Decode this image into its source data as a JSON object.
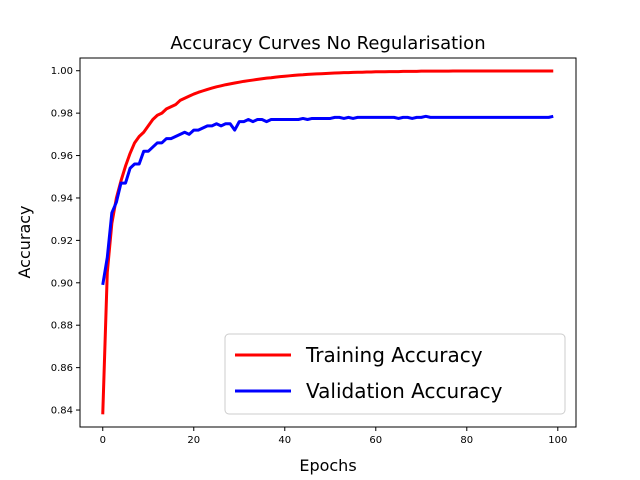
{
  "chart_data": {
    "type": "line",
    "title": "Accuracy Curves No Regularisation",
    "xlabel": "Epochs",
    "ylabel": "Accuracy",
    "xlim": [
      -5,
      104
    ],
    "ylim": [
      0.832,
      1.006
    ],
    "xticks": [
      0,
      20,
      40,
      60,
      80,
      100
    ],
    "yticks": [
      0.84,
      0.86,
      0.88,
      0.9,
      0.92,
      0.94,
      0.96,
      0.98,
      1.0
    ],
    "xtick_labels": [
      "0",
      "20",
      "40",
      "60",
      "80",
      "100"
    ],
    "ytick_labels": [
      "0.84",
      "0.86",
      "0.88",
      "0.90",
      "0.92",
      "0.94",
      "0.96",
      "0.98",
      "1.00"
    ],
    "grid": false,
    "legend_position": "bottom-right",
    "series": [
      {
        "name": "Training Accuracy",
        "color": "#ff0000",
        "x": [
          0,
          1,
          2,
          3,
          4,
          5,
          6,
          7,
          8,
          9,
          10,
          11,
          12,
          13,
          14,
          15,
          16,
          17,
          18,
          19,
          20,
          21,
          22,
          23,
          24,
          25,
          26,
          27,
          28,
          29,
          30,
          31,
          32,
          33,
          34,
          35,
          36,
          37,
          38,
          39,
          40,
          41,
          42,
          43,
          44,
          45,
          46,
          47,
          48,
          49,
          50,
          51,
          52,
          53,
          54,
          55,
          56,
          57,
          58,
          59,
          60,
          61,
          62,
          63,
          64,
          65,
          66,
          67,
          68,
          69,
          70,
          71,
          72,
          73,
          74,
          75,
          76,
          77,
          78,
          79,
          80,
          81,
          82,
          83,
          84,
          85,
          86,
          87,
          88,
          89,
          90,
          91,
          92,
          93,
          94,
          95,
          96,
          97,
          98,
          99
        ],
        "values": [
          0.838,
          0.905,
          0.928,
          0.94,
          0.948,
          0.955,
          0.961,
          0.966,
          0.969,
          0.971,
          0.974,
          0.977,
          0.979,
          0.98,
          0.982,
          0.983,
          0.984,
          0.986,
          0.987,
          0.988,
          0.989,
          0.9898,
          0.9905,
          0.9912,
          0.9918,
          0.9924,
          0.9929,
          0.9934,
          0.9938,
          0.9942,
          0.9946,
          0.995,
          0.9953,
          0.9956,
          0.9959,
          0.9962,
          0.9965,
          0.9967,
          0.997,
          0.9972,
          0.9974,
          0.9976,
          0.9978,
          0.998,
          0.9981,
          0.9983,
          0.9984,
          0.9985,
          0.9986,
          0.9987,
          0.9988,
          0.9989,
          0.999,
          0.9991,
          0.9991,
          0.9992,
          0.9993,
          0.9993,
          0.9994,
          0.9994,
          0.9995,
          0.9995,
          0.9995,
          0.9996,
          0.9996,
          0.9996,
          0.9997,
          0.9997,
          0.9997,
          0.9997,
          0.9998,
          0.9998,
          0.9998,
          0.9998,
          0.9998,
          0.9998,
          0.9998,
          0.9999,
          0.9999,
          0.9999,
          0.9999,
          0.9999,
          0.9999,
          0.9999,
          0.9999,
          0.9999,
          0.9999,
          0.9999,
          0.9999,
          0.9999,
          0.9999,
          0.9999,
          0.9999,
          0.9999,
          0.9999,
          0.9999,
          0.9999,
          0.9999,
          0.9999,
          0.9999
        ]
      },
      {
        "name": "Validation Accuracy",
        "color": "#0000ff",
        "x": [
          0,
          1,
          2,
          3,
          4,
          5,
          6,
          7,
          8,
          9,
          10,
          11,
          12,
          13,
          14,
          15,
          16,
          17,
          18,
          19,
          20,
          21,
          22,
          23,
          24,
          25,
          26,
          27,
          28,
          29,
          30,
          31,
          32,
          33,
          34,
          35,
          36,
          37,
          38,
          39,
          40,
          41,
          42,
          43,
          44,
          45,
          46,
          47,
          48,
          49,
          50,
          51,
          52,
          53,
          54,
          55,
          56,
          57,
          58,
          59,
          60,
          61,
          62,
          63,
          64,
          65,
          66,
          67,
          68,
          69,
          70,
          71,
          72,
          73,
          74,
          75,
          76,
          77,
          78,
          79,
          80,
          81,
          82,
          83,
          84,
          85,
          86,
          87,
          88,
          89,
          90,
          91,
          92,
          93,
          94,
          95,
          96,
          97,
          98,
          99
        ],
        "values": [
          0.899,
          0.912,
          0.933,
          0.938,
          0.947,
          0.947,
          0.954,
          0.956,
          0.956,
          0.962,
          0.962,
          0.964,
          0.966,
          0.966,
          0.968,
          0.968,
          0.969,
          0.97,
          0.971,
          0.97,
          0.972,
          0.972,
          0.973,
          0.974,
          0.974,
          0.975,
          0.974,
          0.975,
          0.975,
          0.972,
          0.976,
          0.976,
          0.977,
          0.976,
          0.977,
          0.977,
          0.976,
          0.977,
          0.977,
          0.977,
          0.977,
          0.977,
          0.977,
          0.977,
          0.9775,
          0.977,
          0.9775,
          0.9775,
          0.9775,
          0.9775,
          0.9775,
          0.978,
          0.978,
          0.9775,
          0.978,
          0.9775,
          0.978,
          0.978,
          0.978,
          0.978,
          0.978,
          0.978,
          0.978,
          0.978,
          0.978,
          0.9775,
          0.978,
          0.978,
          0.9775,
          0.978,
          0.978,
          0.9785,
          0.978,
          0.978,
          0.978,
          0.978,
          0.978,
          0.978,
          0.978,
          0.978,
          0.978,
          0.978,
          0.978,
          0.978,
          0.978,
          0.978,
          0.978,
          0.978,
          0.978,
          0.978,
          0.978,
          0.978,
          0.978,
          0.978,
          0.978,
          0.978,
          0.978,
          0.978,
          0.978,
          0.9785
        ]
      }
    ]
  }
}
